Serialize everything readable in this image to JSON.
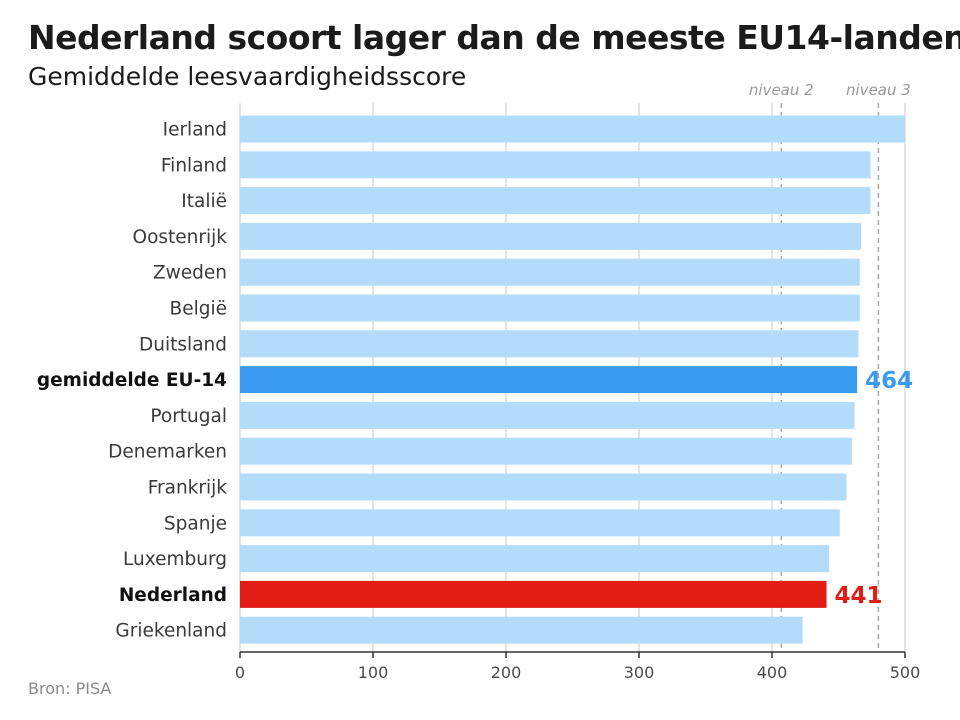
{
  "title": "Nederland scoort lager dan de meeste EU14-landen",
  "subtitle": "Gemiddelde leesvaardigheidsscore",
  "source": "Bron: PISA",
  "colors": {
    "bar": "#b3dcfb",
    "average": "#3a9af0",
    "netherlands": "#e21d15",
    "grid": "#c9c9c9",
    "reference": "#a8a8a8"
  },
  "chart_data": {
    "type": "bar",
    "orientation": "horizontal",
    "title": "Nederland scoort lager dan de meeste EU14-landen",
    "subtitle": "Gemiddelde leesvaardigheidsscore",
    "categories": [
      "Ierland",
      "Finland",
      "Italië",
      "Oostenrijk",
      "Zweden",
      "België",
      "Duitsland",
      "gemiddelde EU-14",
      "Portugal",
      "Denemarken",
      "Frankrijk",
      "Spanje",
      "Luxemburg",
      "Nederland",
      "Griekenland"
    ],
    "values": [
      500,
      474,
      474,
      467,
      466,
      466,
      465,
      464,
      462,
      460,
      456,
      451,
      443,
      441,
      423
    ],
    "highlight": {
      "gemiddelde EU-14": {
        "color": "#3a9af0",
        "label": "464",
        "bold": true
      },
      "Nederland": {
        "color": "#e21d15",
        "label": "441",
        "bold": true
      }
    },
    "xlim": [
      0,
      500
    ],
    "xticks": [
      0,
      100,
      200,
      300,
      400,
      500
    ],
    "grid": true,
    "reference_lines": [
      {
        "label": "niveau 2",
        "value": 407
      },
      {
        "label": "niveau 3",
        "value": 480
      }
    ],
    "xlabel": "",
    "ylabel": ""
  }
}
